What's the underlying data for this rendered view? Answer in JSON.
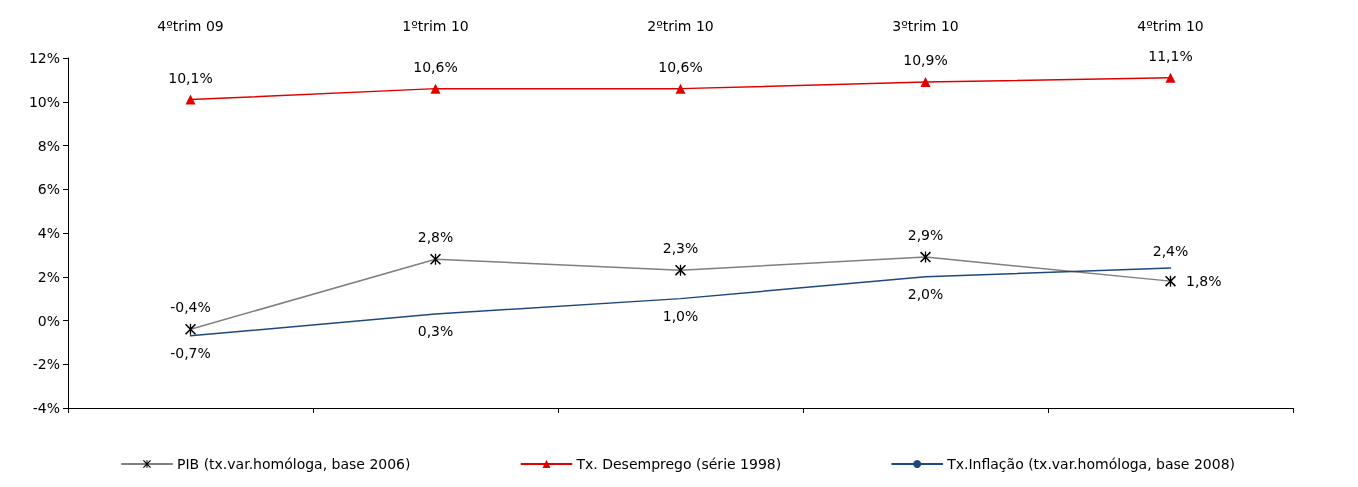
{
  "chart_data": {
    "type": "line",
    "categories": [
      "4ºtrim 09",
      "1ºtrim 10",
      "2ºtrim 10",
      "3ºtrim 10",
      "4ºtrim 10"
    ],
    "series": [
      {
        "name": "PIB (tx.var.homóloga, base 2006)",
        "color": "#7f7f7f",
        "marker": "cross",
        "values": [
          -0.4,
          2.8,
          2.3,
          2.9,
          1.8
        ],
        "value_labels": [
          "-0,4%",
          "2,8%",
          "2,3%",
          "2,9%",
          "1,8%"
        ]
      },
      {
        "name": "Tx. Desemprego (série 1998)",
        "color": "#e00000",
        "marker": "triangle",
        "values": [
          10.1,
          10.6,
          10.6,
          10.9,
          11.1
        ],
        "value_labels": [
          "10,1%",
          "10,6%",
          "10,6%",
          "10,9%",
          "11,1%"
        ]
      },
      {
        "name": "Tx.Inflação (tx.var.homóloga, base 2008)",
        "color": "#1f497d",
        "marker": "none",
        "values": [
          -0.7,
          0.3,
          1.0,
          2.0,
          2.4
        ],
        "value_labels": [
          "-0,7%",
          "0,3%",
          "1,0%",
          "2,0%",
          "2,4%"
        ]
      }
    ],
    "ylim": [
      -4,
      12
    ],
    "yticks": [
      {
        "value": -4,
        "label": "-4%"
      },
      {
        "value": -2,
        "label": "-2%"
      },
      {
        "value": 0,
        "label": "0%"
      },
      {
        "value": 2,
        "label": "2%"
      },
      {
        "value": 4,
        "label": "4%"
      },
      {
        "value": 6,
        "label": "6%"
      },
      {
        "value": 8,
        "label": "8%"
      },
      {
        "value": 10,
        "label": "10%"
      },
      {
        "value": 12,
        "label": "12%"
      }
    ],
    "grid": false,
    "legend": "bottom",
    "line_style": "solid"
  }
}
